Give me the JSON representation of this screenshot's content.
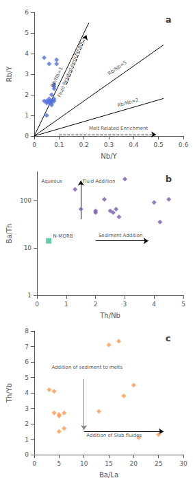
{
  "chart_data": [
    {
      "type": "scatter",
      "title": "a",
      "xlabel": "Nb/Y",
      "ylabel": "Rb/Y",
      "x": [
        0.04,
        0.05,
        0.05,
        0.06,
        0.06,
        0.06,
        0.07,
        0.07,
        0.07,
        0.07,
        0.08,
        0.08,
        0.08,
        0.08,
        0.09,
        0.09,
        0.05,
        0.04,
        0.06,
        0.07,
        0.08
      ],
      "values": [
        1.7,
        1.7,
        1.6,
        1.7,
        1.8,
        1.6,
        1.7,
        1.6,
        1.5,
        2.0,
        2.3,
        2.4,
        2.5,
        1.8,
        3.5,
        3.7,
        1.0,
        3.8,
        3.5,
        1.7,
        1.7
      ],
      "marker": "diamond",
      "xlim": [
        0,
        0.6
      ],
      "ylim": [
        0,
        6
      ],
      "xticks": [
        0,
        0.1,
        0.2,
        0.3,
        0.4,
        0.5,
        0.6
      ],
      "yticks": [
        0,
        1,
        2,
        3,
        4,
        5,
        6
      ],
      "grid": false,
      "lines": [
        {
          "label": "Rb/Nb=1",
          "x": [
            0,
            0.22
          ],
          "y": [
            0,
            5.5
          ],
          "label_at": [
            0.1,
            2.8
          ],
          "color": "black"
        },
        {
          "label": "Rb/Nb=5",
          "x": [
            0,
            0.52
          ],
          "y": [
            0,
            4.42
          ],
          "label_at": [
            0.34,
            3.2
          ],
          "color": "black"
        },
        {
          "label": "Rb/Nb=2",
          "x": [
            0,
            0.52
          ],
          "y": [
            0,
            1.82
          ],
          "label_at": [
            0.38,
            1.5
          ],
          "color": "black"
        }
      ],
      "arrows": [
        {
          "x": [
            0.13,
            0.21
          ],
          "y": [
            2.5,
            4.9
          ],
          "line_style": "dashed",
          "color": "black",
          "label": "Fluid Related enrichment",
          "label_at": [
            0.155,
            3.2
          ]
        },
        {
          "x": [
            0.1,
            0.49
          ],
          "y": [
            0.07,
            0.07
          ],
          "line_style": "dashed",
          "color": "black"
        }
      ],
      "annotations": [
        {
          "text": "Melt Related Enrichment",
          "x": 0.22,
          "y": 0.25
        }
      ]
    },
    {
      "type": "scatter",
      "title": "b",
      "xlabel": "Th/Nb",
      "ylabel": "Ba/Th",
      "x": [
        1.3,
        1.5,
        2.0,
        2.0,
        2.3,
        2.5,
        2.6,
        2.7,
        2.8,
        3.0,
        4.0,
        4.2,
        4.5
      ],
      "values": [
        170,
        65,
        60,
        55,
        105,
        60,
        55,
        65,
        45,
        280,
        90,
        35,
        105
      ],
      "marker": "diamond",
      "log": "y",
      "xlim": [
        0,
        5
      ],
      "ylim": [
        1,
        400
      ],
      "xticks": [
        0,
        1,
        2,
        3,
        4,
        5
      ],
      "yticks": [
        1,
        10,
        100
      ],
      "grid": false,
      "reference_points": [
        {
          "x": 0.4,
          "y": 14,
          "marker": "square"
        }
      ],
      "arrows": [
        {
          "x": [
            1.5,
            1.5
          ],
          "y": [
            40,
            260
          ],
          "line_style": "solid",
          "color": "black"
        },
        {
          "x": [
            2.0,
            3.8
          ],
          "y": [
            14,
            14
          ],
          "line_style": "solid",
          "color": "black"
        }
      ],
      "annotations": [
        {
          "text": "Aqueous",
          "x": 0.15,
          "y": 220
        },
        {
          "text": "Fluid Addition",
          "x": 1.55,
          "y": 220
        },
        {
          "text": "N-MORB",
          "x": 0.55,
          "y": 15.4
        },
        {
          "text": "Sediment Addition",
          "x": 2.1,
          "y": 16
        }
      ]
    },
    {
      "type": "scatter",
      "title": "c",
      "xlabel": "Ba/La",
      "ylabel": "Th/Yb",
      "x": [
        3,
        4,
        4,
        5,
        5,
        5,
        6,
        6,
        13,
        15,
        17,
        18,
        20,
        21,
        25
      ],
      "values": [
        4.2,
        4.1,
        2.7,
        2.6,
        2.5,
        1.5,
        1.7,
        2.7,
        2.8,
        7.1,
        7.35,
        3.8,
        4.5,
        1.1,
        1.3
      ],
      "marker": "diamond",
      "xlim": [
        0,
        30
      ],
      "ylim": [
        0,
        8
      ],
      "xticks": [
        0,
        5,
        10,
        15,
        20,
        25,
        30
      ],
      "yticks": [
        0,
        1,
        2,
        3,
        4,
        5,
        6,
        7,
        8
      ],
      "grid": false,
      "arrows": [
        {
          "x": [
            10,
            10
          ],
          "y": [
            4.9,
            1.6
          ],
          "line_style": "solid",
          "color": "gray"
        },
        {
          "x": [
            10,
            26
          ],
          "y": [
            1.5,
            1.5
          ],
          "line_style": "solid",
          "color": "black"
        }
      ],
      "annotations": [
        {
          "text": "Addition of sediment to melts",
          "x": 3.5,
          "y": 5.5
        },
        {
          "text": "Addition of Slab fluides",
          "x": 10.5,
          "y": 1.1
        }
      ]
    }
  ]
}
